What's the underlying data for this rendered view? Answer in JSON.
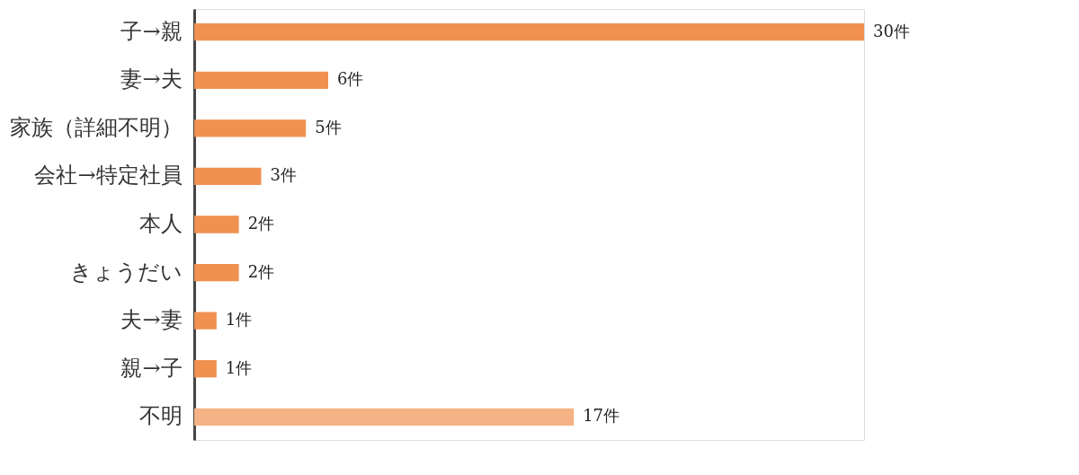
{
  "chart_data": {
    "type": "bar",
    "orientation": "horizontal",
    "categories": [
      "子→親",
      "妻→夫",
      "家族（詳細不明）",
      "会社→特定社員",
      "本人",
      "きょうだい",
      "夫→妻",
      "親→子",
      "不明"
    ],
    "values": [
      30,
      6,
      5,
      3,
      2,
      2,
      1,
      1,
      17
    ],
    "colors": [
      "#f09150",
      "#f09150",
      "#f09150",
      "#f09150",
      "#f09150",
      "#f09150",
      "#f09150",
      "#f09150",
      "#f5b285"
    ],
    "value_labels": [
      "30件",
      "6件",
      "5件",
      "3件",
      "2件",
      "2件",
      "1件",
      "1件",
      "17件"
    ],
    "grid": false
  }
}
